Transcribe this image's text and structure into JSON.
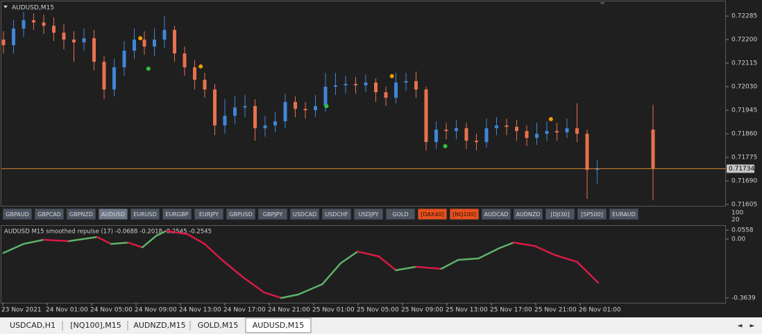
{
  "window": {
    "title": "AUDUSD,M15"
  },
  "main_chart": {
    "type": "candlestick",
    "up_color": "#3f86d8",
    "down_color": "#e8714e",
    "ylim": [
      0.716,
      0.72338
    ],
    "yticks": [
      {
        "value": 0.72285,
        "label": "0.72285"
      },
      {
        "value": 0.722,
        "label": "0.72200"
      },
      {
        "value": 0.72115,
        "label": "0.72115"
      },
      {
        "value": 0.7203,
        "label": "0.72030"
      },
      {
        "value": 0.71945,
        "label": "0.71945"
      },
      {
        "value": 0.7186,
        "label": "0.71860"
      },
      {
        "value": 0.71775,
        "label": "0.71775"
      },
      {
        "value": 0.7169,
        "label": "0.71690"
      },
      {
        "value": 0.71605,
        "label": "0.71605"
      }
    ],
    "current_price": {
      "value": 0.71734,
      "label": "0.71734"
    },
    "current_price_color": "#d8892c",
    "candles": [
      [
        0.722,
        0.7223,
        0.7215,
        0.7218
      ],
      [
        0.7218,
        0.7227,
        0.7215,
        0.7224
      ],
      [
        0.7224,
        0.723,
        0.7221,
        0.7227
      ],
      [
        0.7227,
        0.72295,
        0.72235,
        0.72262
      ],
      [
        0.72262,
        0.7229,
        0.7222,
        0.7225
      ],
      [
        0.7225,
        0.7228,
        0.72195,
        0.72225
      ],
      [
        0.72225,
        0.72255,
        0.72165,
        0.722
      ],
      [
        0.722,
        0.7223,
        0.7212,
        0.7219
      ],
      [
        0.7219,
        0.7224,
        0.7216,
        0.72205
      ],
      [
        0.72205,
        0.72235,
        0.7209,
        0.7212
      ],
      [
        0.7212,
        0.7214,
        0.71985,
        0.7202
      ],
      [
        0.7202,
        0.7213,
        0.71995,
        0.721
      ],
      [
        0.721,
        0.72195,
        0.7207,
        0.7216
      ],
      [
        0.7216,
        0.7224,
        0.7213,
        0.722
      ],
      [
        0.722,
        0.7223,
        0.72145,
        0.72175
      ],
      [
        0.72175,
        0.7224,
        0.7214,
        0.722
      ],
      [
        0.722,
        0.72285,
        0.7217,
        0.72235
      ],
      [
        0.72235,
        0.7225,
        0.7212,
        0.7215
      ],
      [
        0.7215,
        0.72175,
        0.7207,
        0.721
      ],
      [
        0.721,
        0.72125,
        0.7202,
        0.72055
      ],
      [
        0.72055,
        0.7208,
        0.7199,
        0.7202
      ],
      [
        0.7202,
        0.7204,
        0.71855,
        0.7189
      ],
      [
        0.7189,
        0.71985,
        0.7186,
        0.71925
      ],
      [
        0.71925,
        0.71995,
        0.71895,
        0.71955
      ],
      [
        0.71955,
        0.72,
        0.7192,
        0.7196
      ],
      [
        0.7196,
        0.71985,
        0.71835,
        0.7188
      ],
      [
        0.7188,
        0.71925,
        0.7185,
        0.7189
      ],
      [
        0.7189,
        0.7194,
        0.71865,
        0.71905
      ],
      [
        0.71905,
        0.72005,
        0.7188,
        0.71975
      ],
      [
        0.71975,
        0.71995,
        0.7192,
        0.7195
      ],
      [
        0.7195,
        0.71975,
        0.71915,
        0.71945
      ],
      [
        0.71945,
        0.72,
        0.7192,
        0.7196
      ],
      [
        0.7196,
        0.7208,
        0.7194,
        0.7203
      ],
      [
        0.7203,
        0.7208,
        0.72,
        0.72035
      ],
      [
        0.72035,
        0.7207,
        0.72005,
        0.7204
      ],
      [
        0.7204,
        0.72065,
        0.72005,
        0.72035
      ],
      [
        0.72035,
        0.72075,
        0.7201,
        0.72045
      ],
      [
        0.72045,
        0.7206,
        0.71975,
        0.7201
      ],
      [
        0.7201,
        0.7203,
        0.7196,
        0.7199
      ],
      [
        0.7199,
        0.7208,
        0.7197,
        0.72045
      ],
      [
        0.72045,
        0.7208,
        0.72015,
        0.7205
      ],
      [
        0.7205,
        0.72085,
        0.7199,
        0.7202
      ],
      [
        0.7202,
        0.7203,
        0.718,
        0.7183
      ],
      [
        0.7183,
        0.71905,
        0.71805,
        0.71875
      ],
      [
        0.71875,
        0.719,
        0.7184,
        0.7187
      ],
      [
        0.7187,
        0.7191,
        0.7184,
        0.7188
      ],
      [
        0.7188,
        0.719,
        0.71805,
        0.71835
      ],
      [
        0.71835,
        0.7186,
        0.718,
        0.7183
      ],
      [
        0.7183,
        0.71915,
        0.7181,
        0.7188
      ],
      [
        0.7188,
        0.7192,
        0.71855,
        0.7189
      ],
      [
        0.7189,
        0.71915,
        0.71855,
        0.71885
      ],
      [
        0.71885,
        0.7191,
        0.71835,
        0.7187
      ],
      [
        0.7187,
        0.7189,
        0.71815,
        0.71845
      ],
      [
        0.71845,
        0.719,
        0.7182,
        0.7186
      ],
      [
        0.7186,
        0.71905,
        0.71835,
        0.7187
      ],
      [
        0.7187,
        0.719,
        0.71835,
        0.71865
      ],
      [
        0.71865,
        0.71915,
        0.71845,
        0.7188
      ],
      [
        0.7188,
        0.7197,
        0.7183,
        0.7186
      ],
      [
        0.7186,
        0.71875,
        0.71625,
        0.7173
      ],
      [
        0.7173,
        0.71765,
        0.7168,
        0.71734
      ]
    ],
    "extra_candle": [
      0.71875,
      0.71965,
      0.7162,
      0.71735
    ],
    "signals": [
      {
        "color": "#f0a000",
        "bar": 13.6,
        "price": 0.72205
      },
      {
        "color": "#f0a000",
        "bar": 19.6,
        "price": 0.72103
      },
      {
        "color": "#f0a000",
        "bar": 38.6,
        "price": 0.72068
      },
      {
        "color": "#f0a000",
        "bar": 54.4,
        "price": 0.71913
      },
      {
        "color": "#2fc33a",
        "bar": 14.4,
        "price": 0.72095
      },
      {
        "color": "#2fc33a",
        "bar": 32.1,
        "price": 0.7196
      },
      {
        "color": "#2fc33a",
        "bar": 43.9,
        "price": 0.71815
      }
    ]
  },
  "symbol_buttons": [
    {
      "label": "GBPAUD",
      "state": "normal"
    },
    {
      "label": "GBPCAD",
      "state": "normal"
    },
    {
      "label": "GBPNZD",
      "state": "normal"
    },
    {
      "label": "AUDUSD",
      "state": "active"
    },
    {
      "label": "EURUSD",
      "state": "normal"
    },
    {
      "label": "EURGBP",
      "state": "normal"
    },
    {
      "label": "EURJPY",
      "state": "normal"
    },
    {
      "label": "GBPUSD",
      "state": "normal"
    },
    {
      "label": "GBPJPY",
      "state": "normal"
    },
    {
      "label": "USDCAD",
      "state": "normal"
    },
    {
      "label": "USDCHF",
      "state": "normal"
    },
    {
      "label": "USDJPY",
      "state": "normal"
    },
    {
      "label": "GOLD",
      "state": "normal"
    },
    {
      "label": "[DAX40]",
      "state": "highlight"
    },
    {
      "label": "[NQ100]",
      "state": "highlight"
    },
    {
      "label": "AUDCAD",
      "state": "normal"
    },
    {
      "label": "AUDNZD",
      "state": "normal"
    },
    {
      "label": "[DJI30]",
      "state": "normal"
    },
    {
      "label": "[SP500]",
      "state": "normal"
    },
    {
      "label": "EURAUD",
      "state": "normal"
    }
  ],
  "button_scale": [
    100,
    20
  ],
  "indicator": {
    "type": "line",
    "title": "AUDUSD M15 smoothed repulse (17) -0.0688 -0.2018 -0.2545 -0.2545",
    "rise_color": "#5fb36b",
    "fall_color": "#d81b45",
    "ylim": [
      -0.394,
      0.0815
    ],
    "yticks": [
      0.0558,
      {
        "value": 0,
        "label": "0.00"
      },
      -0.3639
    ],
    "x": [
      0,
      2,
      4,
      6.5,
      9.3,
      10.7,
      12.4,
      13.8,
      15.2,
      16.2,
      18.3,
      20,
      21.7,
      23.8,
      25.9,
      27.6,
      29.3,
      31.7,
      33.5,
      35.2,
      37.3,
      39,
      41,
      43.5,
      45.2,
      47.2,
      49.3,
      50.7,
      52.8,
      54.8,
      57,
      59.1
    ],
    "values": [
      -0.0855,
      -0.03,
      -0.004,
      -0.0127,
      0.013,
      -0.03,
      -0.022,
      -0.051,
      0.021,
      0.051,
      0.03,
      -0.03,
      -0.1284,
      -0.2354,
      -0.3297,
      -0.3639,
      -0.3425,
      -0.2783,
      -0.1498,
      -0.077,
      -0.107,
      -0.1926,
      -0.1712,
      -0.184,
      -0.1284,
      -0.12,
      -0.0556,
      -0.0213,
      -0.043,
      -0.0984,
      -0.141,
      -0.2697
    ]
  },
  "time_labels": [
    "23 Nov 2021",
    "24 Nov 01:00",
    "24 Nov 05:00",
    "24 Nov 09:00",
    "24 Nov 13:00",
    "24 Nov 17:00",
    "24 Nov 21:00",
    "25 Nov 01:00",
    "25 Nov 05:00",
    "25 Nov 09:00",
    "25 Nov 13:00",
    "25 Nov 17:00",
    "25 Nov 21:00",
    "26 Nov 01:00"
  ],
  "tabs": [
    {
      "label": "USDCAD,H1",
      "active": false
    },
    {
      "label": "[NQ100],M15",
      "active": false
    },
    {
      "label": "AUDNZD,M15",
      "active": false
    },
    {
      "label": "GOLD,M15",
      "active": false
    },
    {
      "label": "AUDUSD,M15",
      "active": true
    }
  ]
}
